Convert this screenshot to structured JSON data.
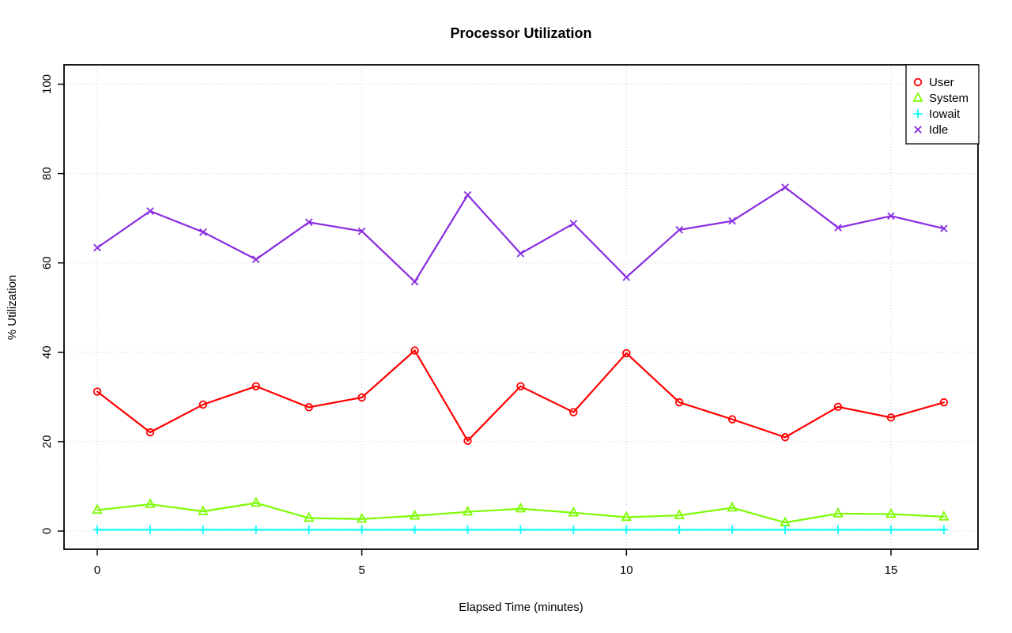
{
  "chart_data": {
    "type": "line",
    "title": "Processor Utilization",
    "xlabel": "Elapsed Time (minutes)",
    "ylabel": "% Utilization",
    "background": "#FFFFFF",
    "grid": "dotted",
    "grid_color": "#CFCFCF",
    "axis_color": "#000000",
    "legend_position": "top-right",
    "xlim": [
      0,
      16
    ],
    "ylim": [
      0,
      100
    ],
    "x_ticks": [
      0,
      5,
      10,
      15
    ],
    "y_ticks": [
      0,
      20,
      40,
      60,
      80,
      100
    ],
    "x": [
      0,
      1,
      2,
      3,
      4,
      5,
      6,
      7,
      8,
      9,
      10,
      11,
      12,
      13,
      14,
      15,
      16
    ],
    "series": [
      {
        "name": "User",
        "color": "#FF0000",
        "marker": "circle",
        "values": [
          31.2,
          22.1,
          28.3,
          32.4,
          27.7,
          29.9,
          40.4,
          20.2,
          32.4,
          26.6,
          39.8,
          28.8,
          25.0,
          21.0,
          27.8,
          25.4,
          28.8
        ]
      },
      {
        "name": "System",
        "color": "#7CFC00",
        "marker": "triangle",
        "values": [
          4.7,
          6.0,
          4.4,
          6.3,
          2.9,
          2.7,
          3.4,
          4.3,
          5.0,
          4.1,
          3.1,
          3.5,
          5.2,
          1.9,
          3.9,
          3.8,
          3.2
        ]
      },
      {
        "name": "Iowait",
        "color": "#00FFFF",
        "marker": "plus",
        "values": [
          0.3,
          0.3,
          0.3,
          0.3,
          0.3,
          0.3,
          0.3,
          0.3,
          0.3,
          0.3,
          0.3,
          0.3,
          0.3,
          0.3,
          0.3,
          0.3,
          0.3
        ]
      },
      {
        "name": "Idle",
        "color": "#8A2BE2",
        "marker": "x",
        "values": [
          63.4,
          71.6,
          66.9,
          60.8,
          69.1,
          67.1,
          55.8,
          75.2,
          62.1,
          68.8,
          56.8,
          67.4,
          69.4,
          76.9,
          67.9,
          70.5,
          67.7
        ]
      }
    ]
  }
}
